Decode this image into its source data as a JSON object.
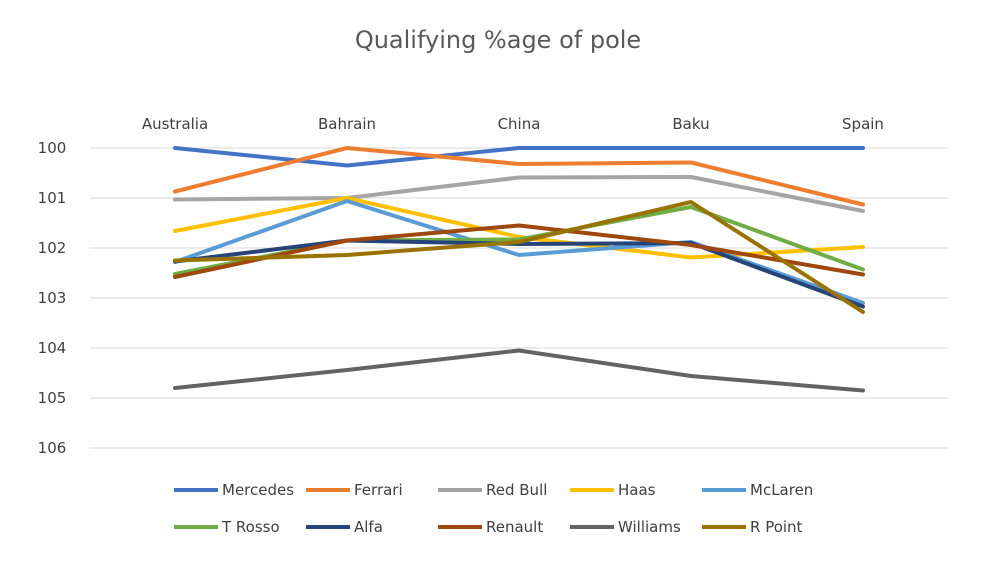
{
  "chart_data": {
    "type": "line",
    "title": "Qualifying %age of pole",
    "xlabel": "",
    "ylabel": "",
    "categories": [
      "Australia",
      "Bahrain",
      "China",
      "Baku",
      "Spain"
    ],
    "x_axis_position": "top",
    "y_axis_reversed": true,
    "ylim": [
      100,
      106
    ],
    "yticks": [
      100,
      101,
      102,
      103,
      104,
      105,
      106
    ],
    "grid": true,
    "legend_position": "bottom",
    "series": [
      {
        "name": "Mercedes",
        "color": "#4472c4",
        "values": [
          100.0,
          100.35,
          100.0,
          100.0,
          100.0
        ]
      },
      {
        "name": "Ferrari",
        "color": "#ed7d31",
        "values": [
          100.87,
          100.0,
          100.32,
          100.29,
          101.13
        ]
      },
      {
        "name": "Red Bull",
        "color": "#a5a5a5",
        "values": [
          101.03,
          101.0,
          100.59,
          100.58,
          101.26
        ]
      },
      {
        "name": "Haas",
        "color": "#ffc000",
        "values": [
          101.66,
          101.0,
          101.78,
          102.19,
          101.98
        ]
      },
      {
        "name": "McLaren",
        "color": "#5b9bd5",
        "values": [
          102.28,
          101.06,
          102.14,
          101.88,
          103.1
        ]
      },
      {
        "name": "T Rosso",
        "color": "#70ad47",
        "values": [
          102.52,
          101.85,
          101.83,
          101.18,
          102.43
        ]
      },
      {
        "name": "Alfa",
        "color": "#264478",
        "values": [
          102.27,
          101.85,
          101.92,
          101.9,
          103.17
        ]
      },
      {
        "name": "Renault",
        "color": "#9e480e",
        "values": [
          102.58,
          101.85,
          101.55,
          101.94,
          102.53
        ]
      },
      {
        "name": "Williams",
        "color": "#636363",
        "values": [
          104.8,
          104.44,
          104.05,
          104.56,
          104.85
        ]
      },
      {
        "name": "R Point",
        "color": "#997300",
        "values": [
          102.25,
          102.14,
          101.88,
          101.08,
          103.28
        ]
      }
    ]
  }
}
